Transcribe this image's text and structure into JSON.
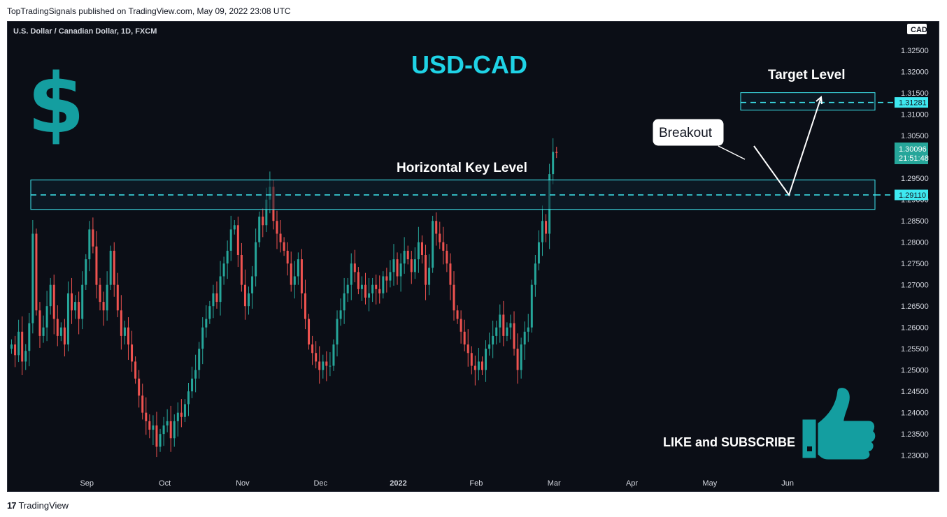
{
  "header": {
    "published": "TopTradingSignals published on TradingView.com, May 09, 2022 23:08 UTC"
  },
  "footer": {
    "brand": "TradingView",
    "logo": "tv-logo-icon"
  },
  "colors": {
    "background": "#0b0e16",
    "up": "#26a69a",
    "down": "#ef5350",
    "cyan": "#3ee8f0",
    "title": "#1fd3e6",
    "teal": "#149ea0",
    "text": "#d1d4dc"
  },
  "chart_data": {
    "type": "candlestick",
    "symbol_label": "U.S. Dollar / Canadian Dollar, 1D, FXCM",
    "currency": "CAD",
    "title": "USD-CAD",
    "ylim": [
      1.2265,
      1.3275
    ],
    "y_ticks": [
      "1.32500",
      "1.32000",
      "1.31500",
      "1.31000",
      "1.30500",
      "1.30000",
      "1.29500",
      "1.29000",
      "1.28500",
      "1.28000",
      "1.27500",
      "1.27000",
      "1.26500",
      "1.26000",
      "1.25500",
      "1.25000",
      "1.24500",
      "1.24000",
      "1.23500",
      "1.23000"
    ],
    "x_labels": [
      {
        "label": "Sep",
        "index": 21,
        "bold": false
      },
      {
        "label": "Oct",
        "index": 43,
        "bold": false
      },
      {
        "label": "Nov",
        "index": 65,
        "bold": false
      },
      {
        "label": "Dec",
        "index": 87,
        "bold": false
      },
      {
        "label": "2022",
        "index": 109,
        "bold": true
      },
      {
        "label": "Feb",
        "index": 131,
        "bold": false
      },
      {
        "label": "Mar",
        "index": 153,
        "bold": false
      },
      {
        "label": "Apr",
        "index": 175,
        "bold": false
      },
      {
        "label": "May",
        "index": 197,
        "bold": false
      },
      {
        "label": "Jun",
        "index": 219,
        "bold": false
      }
    ],
    "closes": [
      1.256,
      1.2535,
      1.259,
      1.252,
      1.2545,
      1.261,
      1.282,
      1.264,
      1.258,
      1.26,
      1.265,
      1.27,
      1.262,
      1.258,
      1.26,
      1.256,
      1.268,
      1.264,
      1.266,
      1.262,
      1.27,
      1.276,
      1.283,
      1.279,
      1.27,
      1.266,
      1.264,
      1.27,
      1.278,
      1.27,
      1.264,
      1.258,
      1.26,
      1.256,
      1.252,
      1.248,
      1.244,
      1.24,
      1.238,
      1.236,
      1.237,
      1.232,
      1.235,
      1.237,
      1.238,
      1.234,
      1.238,
      1.24,
      1.239,
      1.242,
      1.245,
      1.248,
      1.25,
      1.255,
      1.26,
      1.262,
      1.265,
      1.268,
      1.266,
      1.272,
      1.275,
      1.278,
      1.283,
      1.284,
      1.277,
      1.27,
      1.265,
      1.268,
      1.272,
      1.28,
      1.286,
      1.284,
      1.29,
      1.293,
      1.285,
      1.282,
      1.28,
      1.278,
      1.275,
      1.27,
      1.272,
      1.276,
      1.268,
      1.262,
      1.256,
      1.254,
      1.252,
      1.25,
      1.252,
      1.251,
      1.251,
      1.256,
      1.262,
      1.264,
      1.268,
      1.27,
      1.275,
      1.273,
      1.269,
      1.27,
      1.267,
      1.268,
      1.27,
      1.269,
      1.268,
      1.272,
      1.271,
      1.273,
      1.276,
      1.272,
      1.275,
      1.278,
      1.276,
      1.273,
      1.276,
      1.28,
      1.277,
      1.27,
      1.274,
      1.285,
      1.282,
      1.28,
      1.278,
      1.275,
      1.27,
      1.264,
      1.262,
      1.259,
      1.256,
      1.254,
      1.251,
      1.25,
      1.252,
      1.25,
      1.255,
      1.256,
      1.258,
      1.26,
      1.263,
      1.258,
      1.26,
      1.261,
      1.255,
      1.25,
      1.256,
      1.259,
      1.26,
      1.27,
      1.275,
      1.28,
      1.285,
      1.282
    ],
    "price_axis_label": {
      "value": "1.30096",
      "countdown": "21:51:48"
    },
    "annotations": {
      "key_level_label": "Horizontal Key Level",
      "key_level_value": "1.29110",
      "key_level_price": 1.2911,
      "key_zone": [
        1.2877,
        1.2946
      ],
      "target_label": "Target Level",
      "target_value": "1.31281",
      "target_price": 1.31281,
      "target_zone": [
        1.311,
        1.3151
      ],
      "breakout_label": "Breakout",
      "cta_label": "LIKE and SUBSCRIBE"
    }
  }
}
